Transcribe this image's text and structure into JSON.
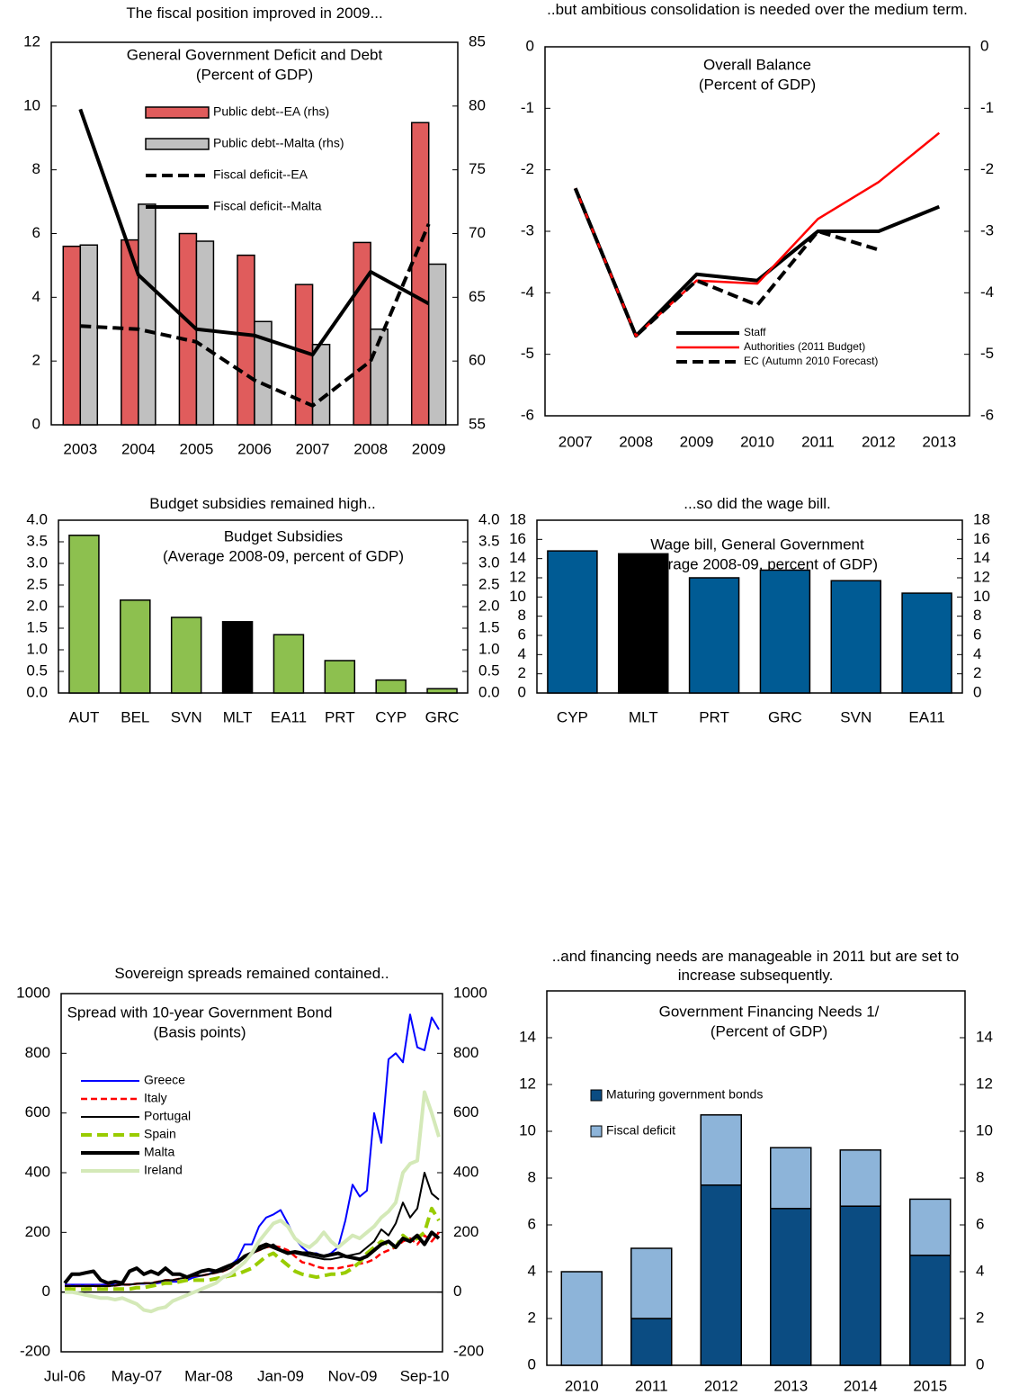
{
  "chart_data": [
    {
      "type": "combo",
      "title": "The fiscal position improved in 2009...",
      "inner_title": "General Government Deficit and Debt",
      "inner_subtitle": "(Percent of GDP)",
      "categories": [
        "2003",
        "2004",
        "2005",
        "2006",
        "2007",
        "2008",
        "2009"
      ],
      "ylim": [
        0,
        12
      ],
      "yticks": [
        0,
        2,
        4,
        6,
        8,
        10,
        12
      ],
      "y2lim": [
        55,
        85
      ],
      "y2ticks": [
        55,
        60,
        65,
        70,
        75,
        80,
        85
      ],
      "series": [
        {
          "name": "Public debt--EA (rhs)",
          "kind": "bar",
          "axis": "y2",
          "color": "#e05c5c",
          "values": [
            69.0,
            69.5,
            70.0,
            68.3,
            66.0,
            69.3,
            78.7
          ]
        },
        {
          "name": "Public debt--Malta (rhs)",
          "kind": "bar",
          "axis": "y2",
          "color": "#c0c0c0",
          "values": [
            69.1,
            72.3,
            69.4,
            63.1,
            61.3,
            62.5,
            67.6
          ]
        },
        {
          "name": "Fiscal deficit--EA",
          "kind": "line",
          "dash": true,
          "color": "#000000",
          "values": [
            3.1,
            3.0,
            2.6,
            1.4,
            0.6,
            2.0,
            6.3
          ]
        },
        {
          "name": "Fiscal deficit--Malta",
          "kind": "line",
          "color": "#000000",
          "values": [
            9.9,
            4.7,
            3.0,
            2.8,
            2.2,
            4.8,
            3.8
          ]
        }
      ]
    },
    {
      "type": "line",
      "title": "..but ambitious consolidation is needed over the medium term.",
      "inner_title": "Overall Balance",
      "inner_subtitle": "(Percent of GDP)",
      "categories": [
        "2007",
        "2008",
        "2009",
        "2010",
        "2011",
        "2012",
        "2013"
      ],
      "ylim": [
        -6,
        0
      ],
      "yticks": [
        -6,
        -5,
        -4,
        -3,
        -2,
        -1,
        0
      ],
      "y2lim": [
        -6,
        0
      ],
      "y2ticks": [
        -6,
        -5,
        -4,
        -3,
        -2,
        -1,
        0
      ],
      "series": [
        {
          "name": "Staff",
          "kind": "line",
          "color": "#000000",
          "values": [
            -2.3,
            -4.7,
            -3.7,
            -3.8,
            -3.0,
            -3.0,
            -2.6
          ]
        },
        {
          "name": "Authorities (2011 Budget)",
          "kind": "line",
          "color": "#ff0000",
          "values": [
            -2.3,
            -4.7,
            -3.8,
            -3.85,
            -2.8,
            -2.2,
            -1.4
          ]
        },
        {
          "name": "EC (Autumn 2010 Forecast)",
          "kind": "line",
          "dash": true,
          "color": "#000000",
          "values": [
            -2.3,
            -4.7,
            -3.8,
            -4.2,
            -3.0,
            -3.3,
            null
          ]
        }
      ]
    },
    {
      "type": "bar",
      "title": "Budget subsidies remained high..",
      "inner_title": "Budget Subsidies",
      "inner_subtitle": "(Average 2008-09, percent of GDP)",
      "categories": [
        "AUT",
        "BEL",
        "SVN",
        "MLT",
        "EA11",
        "PRT",
        "CYP",
        "GRC"
      ],
      "values": [
        3.65,
        2.15,
        1.75,
        1.65,
        1.35,
        0.75,
        0.3,
        0.1
      ],
      "colors": [
        "#8dc04f",
        "#8dc04f",
        "#8dc04f",
        "#000000",
        "#8dc04f",
        "#8dc04f",
        "#8dc04f",
        "#8dc04f"
      ],
      "ylim": [
        0,
        4
      ],
      "yticks": [
        {
          "value": 0,
          "label": "0.0"
        },
        {
          "value": 0.5,
          "label": "0.5"
        },
        {
          "value": 1,
          "label": "1.0"
        },
        {
          "value": 1.5,
          "label": "1.5"
        },
        {
          "value": 2,
          "label": "2.0"
        },
        {
          "value": 2.5,
          "label": "2.5"
        },
        {
          "value": 3,
          "label": "3.0"
        },
        {
          "value": 3.5,
          "label": "3.5"
        },
        {
          "value": 4,
          "label": "4.0"
        }
      ],
      "y2lim": [
        0,
        4
      ],
      "y2ticks": [
        {
          "value": 0,
          "label": "0.0"
        },
        {
          "value": 0.5,
          "label": "0.5"
        },
        {
          "value": 1,
          "label": "1.0"
        },
        {
          "value": 1.5,
          "label": "1.5"
        },
        {
          "value": 2,
          "label": "2.0"
        },
        {
          "value": 2.5,
          "label": "2.5"
        },
        {
          "value": 3,
          "label": "3.0"
        },
        {
          "value": 3.5,
          "label": "3.5"
        },
        {
          "value": 4,
          "label": "4.0"
        }
      ]
    },
    {
      "type": "bar",
      "title": "...so did the wage bill.",
      "inner_title": "Wage bill, General Government",
      "inner_subtitle": "(Average 2008-09, percent of GDP)",
      "categories": [
        "CYP",
        "MLT",
        "PRT",
        "GRC",
        "SVN",
        "EA11"
      ],
      "values": [
        14.8,
        14.5,
        12.0,
        12.8,
        11.7,
        10.4
      ],
      "colors": [
        "#005b94",
        "#000000",
        "#005b94",
        "#005b94",
        "#005b94",
        "#005b94"
      ],
      "ylim": [
        0,
        18
      ],
      "yticks": [
        0,
        2,
        4,
        6,
        8,
        10,
        12,
        14,
        16,
        18
      ],
      "y2lim": [
        0,
        18
      ],
      "y2ticks": [
        0,
        2,
        4,
        6,
        8,
        10,
        12,
        14,
        16,
        18
      ]
    },
    {
      "type": "line",
      "title": "Sovereign spreads remained contained..",
      "inner_title": "Spread with 10-year Government Bond",
      "inner_subtitle": "(Basis points)",
      "categories": [
        "Jul-06",
        null,
        null,
        null,
        null,
        null,
        null,
        null,
        null,
        null,
        "May-07",
        null,
        null,
        null,
        null,
        null,
        null,
        null,
        null,
        null,
        "Mar-08",
        null,
        null,
        null,
        null,
        null,
        null,
        null,
        null,
        null,
        "Jan-09",
        null,
        null,
        null,
        null,
        null,
        null,
        null,
        null,
        null,
        "Nov-09",
        null,
        null,
        null,
        null,
        null,
        null,
        null,
        null,
        null,
        "Sep-10",
        null,
        null
      ],
      "ylim": [
        -200,
        1000
      ],
      "yticks": [
        -200,
        0,
        200,
        400,
        600,
        800,
        1000
      ],
      "y2lim": [
        -200,
        1000
      ],
      "y2ticks": [
        -200,
        0,
        200,
        400,
        600,
        800,
        1000
      ],
      "series": [
        {
          "name": "Greece",
          "kind": "line",
          "color": "#0000ff",
          "values": [
            25,
            25,
            25,
            25,
            25,
            25,
            25,
            25,
            25,
            25,
            28,
            28,
            30,
            30,
            35,
            35,
            35,
            40,
            50,
            55,
            60,
            70,
            80,
            90,
            110,
            160,
            160,
            220,
            250,
            260,
            275,
            230,
            180,
            150,
            130,
            130,
            120,
            130,
            150,
            240,
            360,
            320,
            340,
            600,
            500,
            780,
            800,
            770,
            930,
            820,
            810,
            920,
            880
          ]
        },
        {
          "name": "Italy",
          "kind": "line",
          "dash": true,
          "color": "#ff0000",
          "values": [
            20,
            20,
            20,
            20,
            20,
            20,
            20,
            22,
            25,
            25,
            28,
            30,
            30,
            35,
            40,
            40,
            45,
            50,
            55,
            55,
            60,
            65,
            70,
            80,
            100,
            120,
            130,
            140,
            150,
            155,
            150,
            140,
            120,
            100,
            95,
            85,
            80,
            80,
            80,
            85,
            90,
            95,
            100,
            110,
            130,
            140,
            150,
            170,
            180,
            160,
            190,
            170,
            200
          ]
        },
        {
          "name": "Portugal",
          "kind": "line",
          "color": "#000000",
          "values": [
            20,
            20,
            20,
            20,
            20,
            20,
            20,
            22,
            25,
            25,
            28,
            30,
            30,
            35,
            40,
            40,
            45,
            50,
            55,
            55,
            60,
            65,
            70,
            80,
            100,
            120,
            130,
            140,
            150,
            160,
            140,
            130,
            130,
            125,
            120,
            115,
            110,
            110,
            115,
            120,
            125,
            130,
            150,
            170,
            210,
            190,
            230,
            300,
            250,
            280,
            400,
            330,
            310
          ]
        },
        {
          "name": "Spain",
          "kind": "line",
          "dash": true,
          "color": "#99cc00",
          "values": [
            10,
            10,
            10,
            10,
            10,
            10,
            10,
            10,
            10,
            10,
            15,
            15,
            20,
            25,
            30,
            30,
            35,
            40,
            40,
            40,
            40,
            45,
            50,
            55,
            60,
            70,
            80,
            100,
            120,
            130,
            110,
            90,
            70,
            60,
            55,
            50,
            55,
            60,
            60,
            65,
            80,
            100,
            130,
            150,
            170,
            160,
            150,
            190,
            170,
            180,
            200,
            280,
            240
          ]
        },
        {
          "name": "Malta",
          "kind": "line",
          "color": "#000000",
          "values": [
            30,
            60,
            60,
            65,
            70,
            40,
            30,
            35,
            30,
            70,
            80,
            60,
            70,
            60,
            80,
            60,
            60,
            50,
            60,
            70,
            75,
            70,
            80,
            90,
            100,
            120,
            130,
            150,
            160,
            150,
            140,
            130,
            135,
            130,
            130,
            125,
            120,
            125,
            130,
            120,
            115,
            110,
            120,
            140,
            160,
            170,
            150,
            180,
            170,
            190,
            160,
            200,
            180
          ]
        },
        {
          "name": "Ireland",
          "kind": "line",
          "color": "#d4e9b8",
          "values": [
            0,
            0,
            -5,
            -10,
            -15,
            -20,
            -20,
            -25,
            -20,
            -30,
            -40,
            -60,
            -65,
            -55,
            -50,
            -30,
            -20,
            -10,
            0,
            10,
            20,
            30,
            50,
            60,
            80,
            100,
            130,
            170,
            200,
            230,
            240,
            220,
            180,
            160,
            150,
            170,
            200,
            170,
            150,
            170,
            190,
            180,
            200,
            220,
            250,
            270,
            300,
            400,
            430,
            440,
            670,
            600,
            520
          ]
        }
      ]
    },
    {
      "type": "stacked_bar",
      "title": "..and financing needs are manageable in 2011 but are set to increase subsequently.",
      "inner_title": "Government Financing Needs 1/",
      "inner_subtitle": "(Percent of GDP)",
      "categories": [
        "2010",
        "2011",
        "2012",
        "2013",
        "2014",
        "2015"
      ],
      "ylim": [
        0,
        16
      ],
      "yticks": [
        0,
        2,
        4,
        6,
        8,
        10,
        12,
        14
      ],
      "y2lim": [
        0,
        16
      ],
      "y2ticks": [
        0,
        2,
        4,
        6,
        8,
        10,
        12,
        14
      ],
      "series": [
        {
          "name": "Maturing government bonds",
          "color": "#0b4c82",
          "values": [
            0,
            2.0,
            7.7,
            6.7,
            6.8,
            4.7
          ]
        },
        {
          "name": "Fiscal deficit",
          "color": "#8db4d9",
          "values": [
            4.0,
            3.0,
            3.0,
            2.6,
            2.4,
            2.4
          ]
        }
      ]
    }
  ]
}
